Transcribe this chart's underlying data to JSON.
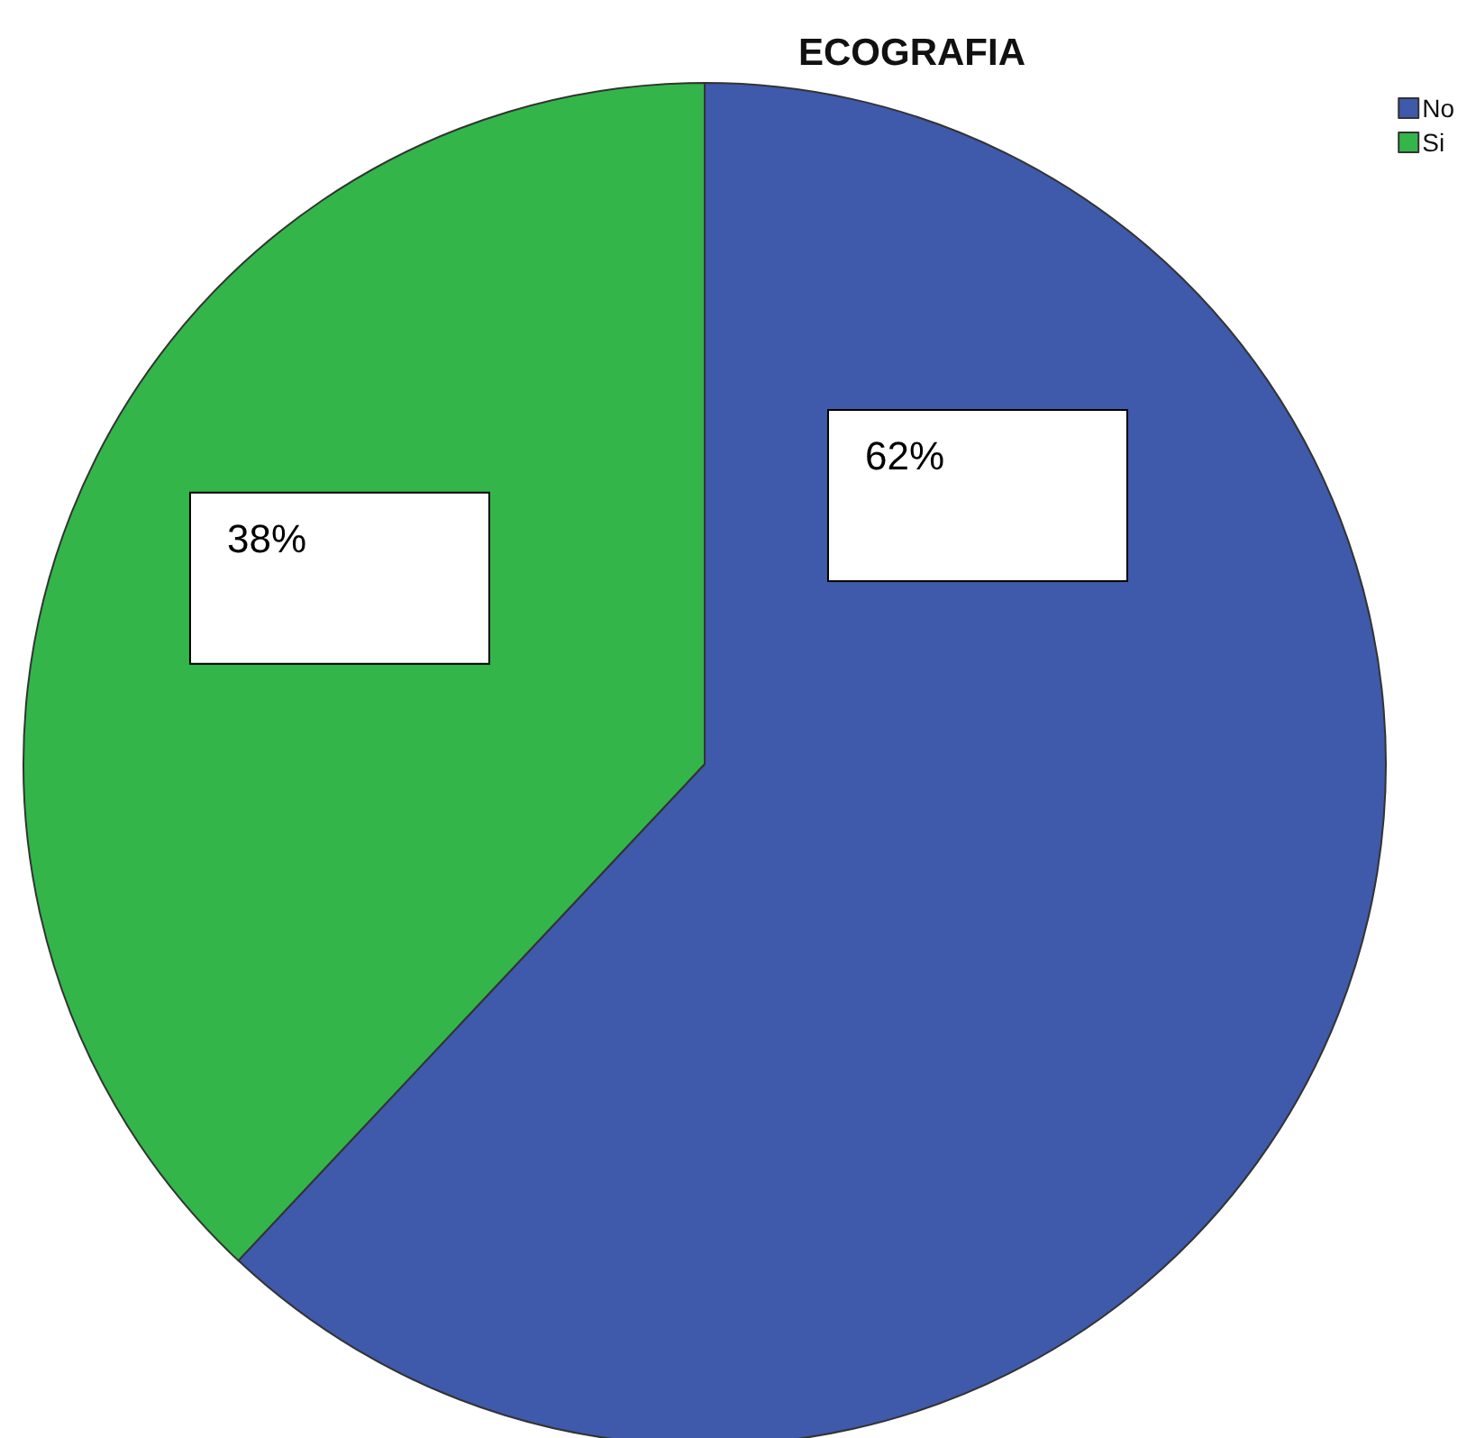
{
  "chart_data": {
    "type": "pie",
    "title": "ECOGRAFIA",
    "categories": [
      "No",
      "Si"
    ],
    "values": [
      62,
      38
    ],
    "colors": [
      "#3f59ab",
      "#33b54a"
    ],
    "value_labels": [
      "62%",
      "38%"
    ],
    "legend": "top right"
  }
}
